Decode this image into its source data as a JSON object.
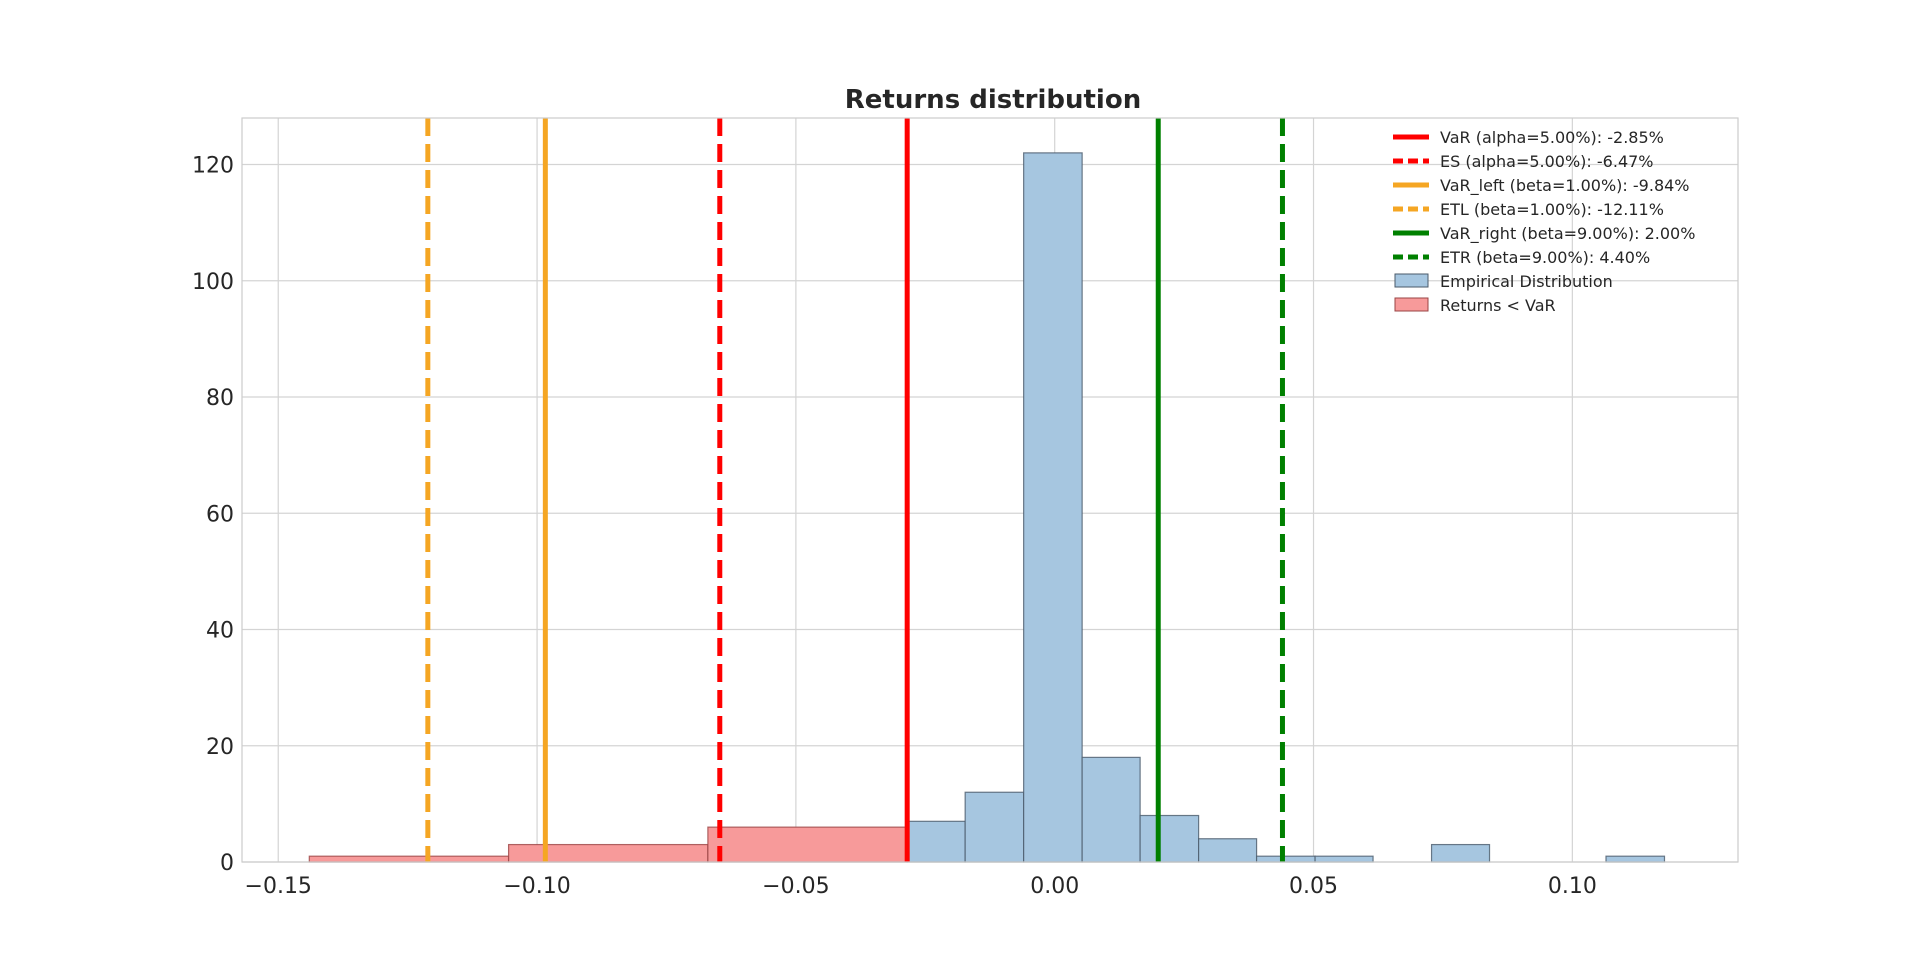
{
  "chart_data": {
    "type": "bar",
    "title": "Returns distribution",
    "xlabel": "",
    "ylabel": "",
    "xlim": [
      -0.157,
      0.132
    ],
    "ylim": [
      0,
      128
    ],
    "grid": true,
    "legend_placement": "top-right",
    "x_ticks": [
      {
        "value": -0.15,
        "label": "−0.15"
      },
      {
        "value": -0.1,
        "label": "−0.10"
      },
      {
        "value": -0.05,
        "label": "−0.05"
      },
      {
        "value": 0.0,
        "label": "0.00"
      },
      {
        "value": 0.05,
        "label": "0.05"
      },
      {
        "value": 0.1,
        "label": "0.10"
      }
    ],
    "y_ticks": [
      {
        "value": 0,
        "label": "0"
      },
      {
        "value": 20,
        "label": "20"
      },
      {
        "value": 40,
        "label": "40"
      },
      {
        "value": 60,
        "label": "60"
      },
      {
        "value": 80,
        "label": "80"
      },
      {
        "value": 100,
        "label": "100"
      },
      {
        "value": 120,
        "label": "120"
      }
    ],
    "series": [
      {
        "name": "Empirical Distribution",
        "color": "#a6c6e0",
        "edge_color": "#4a5a6a",
        "bins": [
          {
            "x0": -0.0285,
            "x1": -0.0173,
            "count": 7
          },
          {
            "x0": -0.0173,
            "x1": -0.006,
            "count": 12
          },
          {
            "x0": -0.006,
            "x1": 0.0053,
            "count": 122
          },
          {
            "x0": 0.0053,
            "x1": 0.0165,
            "count": 18
          },
          {
            "x0": 0.0165,
            "x1": 0.0278,
            "count": 8
          },
          {
            "x0": 0.0278,
            "x1": 0.039,
            "count": 4
          },
          {
            "x0": 0.039,
            "x1": 0.0503,
            "count": 1
          },
          {
            "x0": 0.0503,
            "x1": 0.0615,
            "count": 1
          },
          {
            "x0": 0.0728,
            "x1": 0.084,
            "count": 3
          },
          {
            "x0": 0.1065,
            "x1": 0.1178,
            "count": 1
          }
        ]
      },
      {
        "name": "Returns < VaR",
        "color": "#f79a9a",
        "edge_color": "#9a4444",
        "bins": [
          {
            "x0": -0.144,
            "x1": -0.1055,
            "count": 1
          },
          {
            "x0": -0.1055,
            "x1": -0.067,
            "count": 3
          },
          {
            "x0": -0.067,
            "x1": -0.0285,
            "count": 6
          }
        ]
      }
    ],
    "lines": [
      {
        "name": "VaR (alpha=5.00%):  -2.85%",
        "x": -0.0285,
        "color": "#ff0000",
        "style": "solid"
      },
      {
        "name": "ES (alpha=5.00%):  -6.47%",
        "x": -0.0647,
        "color": "#ff0000",
        "style": "dashed"
      },
      {
        "name": "VaR_left (beta=1.00%):  -9.84%",
        "x": -0.0984,
        "color": "#f5a623",
        "style": "solid"
      },
      {
        "name": "ETL (beta=1.00%):  -12.11%",
        "x": -0.1211,
        "color": "#f5a623",
        "style": "dashed"
      },
      {
        "name": "VaR_right (beta=9.00%):  2.00%",
        "x": 0.02,
        "color": "#008000",
        "style": "solid"
      },
      {
        "name": "ETR (beta=9.00%):  4.40%",
        "x": 0.044,
        "color": "#008000",
        "style": "dashed"
      }
    ]
  }
}
